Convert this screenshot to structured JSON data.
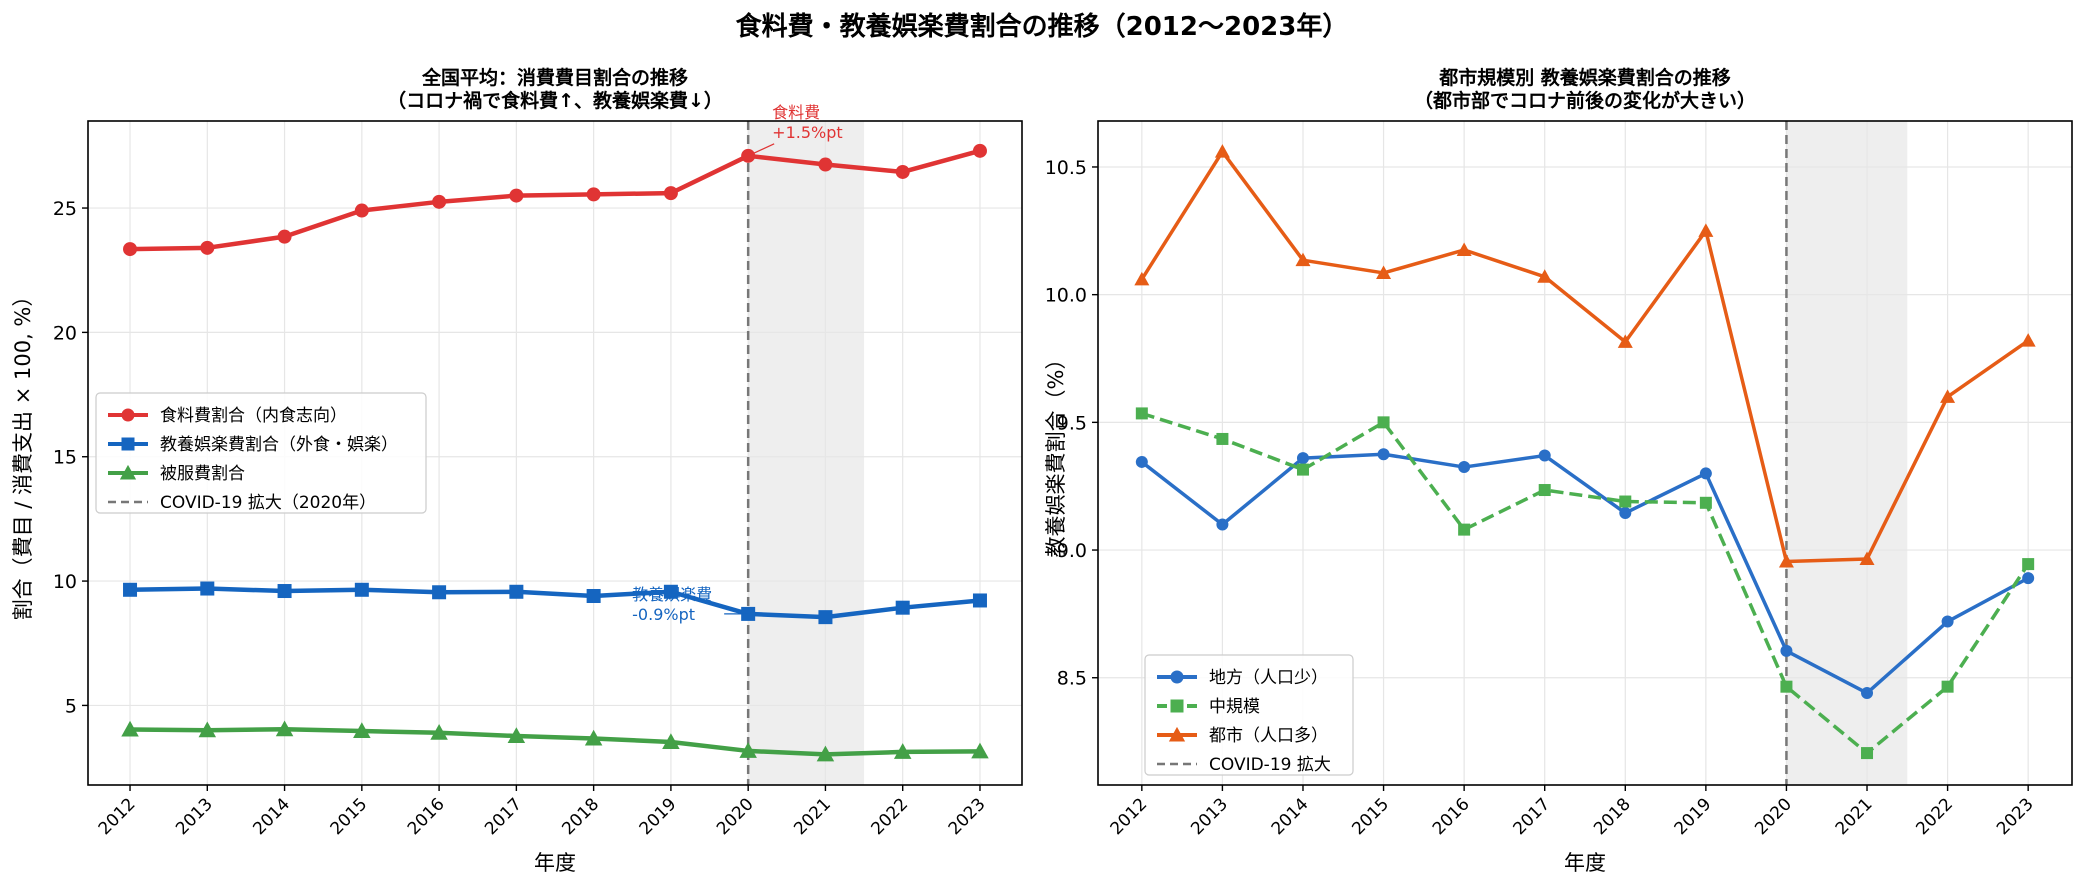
{
  "figure_title": "食料費・教養娯楽費割合の推移（2012〜2023年）",
  "colors": {
    "food": "#e03434",
    "culture": "#1565c0",
    "clothing": "#43a047",
    "rural": "#2a6fc7",
    "mid": "#4caf50",
    "urban": "#e65c16",
    "covid_line": "#777777",
    "covid_band": "#eeeeee",
    "grid": "#e6e6e6"
  },
  "chart_data": [
    {
      "type": "line",
      "title": "全国平均：消費費目割合の推移\n（コロナ禍で食料費↑、教養娯楽費↓）",
      "xlabel": "年度",
      "ylabel": "割合（費目 / 消費支出 × 100, %）",
      "categories": [
        "2012",
        "2013",
        "2014",
        "2015",
        "2016",
        "2017",
        "2018",
        "2019",
        "2020",
        "2021",
        "2022",
        "2023"
      ],
      "ylim": [
        1.8,
        28.5
      ],
      "yticks": [
        5,
        10,
        15,
        20,
        25
      ],
      "ytick_labels": [
        "5",
        "10",
        "15",
        "20",
        "25"
      ],
      "grid": true,
      "legend_position": "center-left",
      "covid_marker": {
        "year": "2020",
        "shade_to": 2021.5
      },
      "series": [
        {
          "name": "食料費割合（内食志向）",
          "color_key": "food",
          "marker": "circle",
          "line": "solid",
          "values": [
            23.35,
            23.4,
            23.85,
            24.9,
            25.25,
            25.5,
            25.55,
            25.6,
            27.1,
            26.75,
            26.45,
            27.3
          ]
        },
        {
          "name": "教養娯楽費割合（外食・娯楽）",
          "color_key": "culture",
          "marker": "square",
          "line": "solid",
          "values": [
            9.65,
            9.7,
            9.6,
            9.65,
            9.55,
            9.57,
            9.4,
            9.57,
            8.68,
            8.55,
            8.93,
            9.22
          ]
        },
        {
          "name": "被服費割合",
          "color_key": "clothing",
          "marker": "triangle",
          "line": "solid",
          "values": [
            4.03,
            4.0,
            4.04,
            3.97,
            3.9,
            3.77,
            3.67,
            3.53,
            3.17,
            3.03,
            3.13,
            3.15
          ]
        }
      ],
      "covid_legend_label": "COVID-19 拡大（2020年）",
      "annotations": [
        {
          "text": "食料費\n+1.5%pt",
          "color_key": "food",
          "x": "2020",
          "y": 27.1
        },
        {
          "text": "教養娯楽費\n-0.9%pt",
          "color_key": "culture",
          "x": "2020",
          "y": 8.68
        }
      ]
    },
    {
      "type": "line",
      "title": "都市規模別 教養娯楽費割合の推移\n（都市部でコロナ前後の変化が大きい）",
      "xlabel": "年度",
      "ylabel": "教養娯楽費割合（%）",
      "categories": [
        "2012",
        "2013",
        "2014",
        "2015",
        "2016",
        "2017",
        "2018",
        "2019",
        "2020",
        "2021",
        "2022",
        "2023"
      ],
      "ylim": [
        8.08,
        10.68
      ],
      "yticks": [
        8.5,
        9.0,
        9.5,
        10.0,
        10.5
      ],
      "ytick_labels": [
        "8.5",
        "9.0",
        "9.5",
        "10.0",
        "10.5"
      ],
      "grid": true,
      "legend_position": "lower-left",
      "covid_marker": {
        "year": "2020",
        "shade_to": 2021.5
      },
      "series": [
        {
          "name": "地方（人口少）",
          "color_key": "rural",
          "marker": "circle",
          "line": "solid",
          "values": [
            9.345,
            9.1,
            9.36,
            9.375,
            9.325,
            9.37,
            9.145,
            9.3,
            8.605,
            8.44,
            8.72,
            8.89
          ]
        },
        {
          "name": "中規模",
          "color_key": "mid",
          "marker": "square",
          "line": "dashed",
          "values": [
            9.535,
            9.435,
            9.315,
            9.5,
            9.08,
            9.235,
            9.19,
            9.185,
            8.465,
            8.205,
            8.465,
            8.945
          ]
        },
        {
          "name": "都市（人口多）",
          "color_key": "urban",
          "marker": "triangle",
          "line": "solid",
          "values": [
            10.06,
            10.56,
            10.135,
            10.085,
            10.175,
            10.07,
            9.815,
            10.25,
            8.955,
            8.965,
            9.6,
            9.82
          ]
        }
      ],
      "covid_legend_label": "COVID-19 拡大",
      "annotations": []
    }
  ]
}
